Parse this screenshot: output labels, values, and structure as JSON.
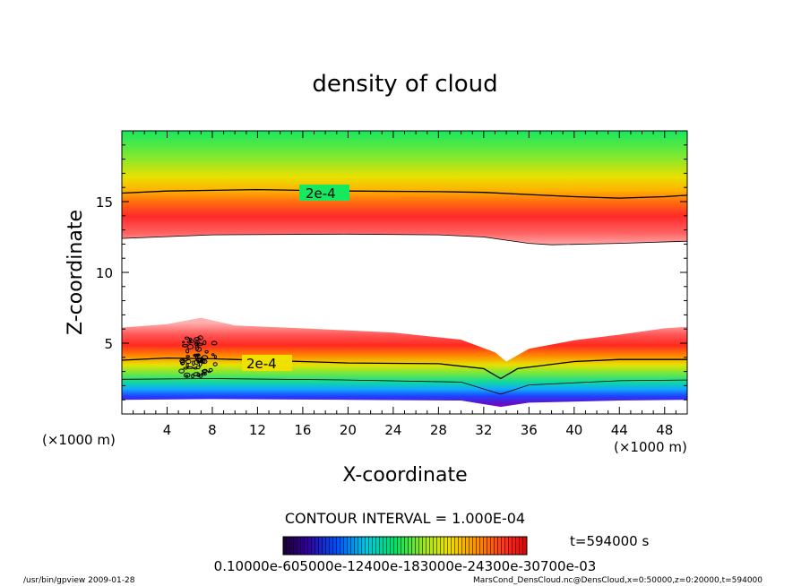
{
  "chart_data": {
    "type": "heatmap",
    "title": "density of cloud",
    "xlabel": "X-coordinate",
    "ylabel": "Z-coordinate",
    "x_unit_left": "(×1000 m)",
    "x_unit_right": "(×1000 m)",
    "xlim": [
      0,
      50
    ],
    "ylim": [
      0,
      20
    ],
    "x_ticks": [
      4,
      8,
      12,
      16,
      20,
      24,
      28,
      32,
      36,
      40,
      44,
      48
    ],
    "y_ticks": [
      5,
      10,
      15
    ],
    "contour_labels": [
      "2e-4",
      "2e-4"
    ],
    "contour_interval": "CONTOUR INTERVAL = 1.000E-04",
    "time_label": "t=594000 s",
    "colorbar_tick_text": "0.10000e-605000e-12400e-183000e-24300e-30700e-03",
    "upper_band": {
      "contour_2e4_z": [
        [
          0,
          15.6
        ],
        [
          4,
          15.75
        ],
        [
          12,
          15.85
        ],
        [
          20,
          15.75
        ],
        [
          28,
          15.7
        ],
        [
          32,
          15.65
        ],
        [
          36,
          15.5
        ],
        [
          40,
          15.35
        ],
        [
          44,
          15.25
        ],
        [
          48,
          15.35
        ],
        [
          50,
          15.45
        ]
      ],
      "lower_edge_z": [
        [
          0,
          12.4
        ],
        [
          8,
          12.65
        ],
        [
          20,
          12.7
        ],
        [
          28,
          12.65
        ],
        [
          32,
          12.5
        ],
        [
          36,
          12.05
        ],
        [
          38,
          11.95
        ],
        [
          44,
          12.05
        ],
        [
          50,
          12.2
        ]
      ]
    },
    "lower_band": {
      "upper_edge_z": [
        [
          0,
          6.1
        ],
        [
          4,
          6.35
        ],
        [
          7,
          6.8
        ],
        [
          10,
          6.25
        ],
        [
          16,
          6.05
        ],
        [
          24,
          5.75
        ],
        [
          30,
          5.25
        ],
        [
          33,
          4.35
        ],
        [
          34,
          3.7
        ],
        [
          36,
          4.6
        ],
        [
          40,
          5.2
        ],
        [
          44,
          5.6
        ],
        [
          48,
          6.05
        ],
        [
          50,
          6.15
        ]
      ],
      "contour_2e4_z": [
        [
          0,
          3.8
        ],
        [
          4,
          3.95
        ],
        [
          8,
          3.9
        ],
        [
          12,
          3.8
        ],
        [
          16,
          3.7
        ],
        [
          20,
          3.6
        ],
        [
          28,
          3.55
        ],
        [
          32,
          3.2
        ],
        [
          33.5,
          2.5
        ],
        [
          35,
          3.2
        ],
        [
          40,
          3.7
        ],
        [
          44,
          3.85
        ],
        [
          50,
          3.85
        ]
      ],
      "inner_contour_z": [
        [
          0,
          2.45
        ],
        [
          8,
          2.5
        ],
        [
          20,
          2.4
        ],
        [
          30,
          2.25
        ],
        [
          33.5,
          1.4
        ],
        [
          36,
          2.05
        ],
        [
          44,
          2.35
        ],
        [
          50,
          2.4
        ]
      ],
      "bottom_edge_z": [
        [
          0,
          1.0
        ],
        [
          8,
          1.05
        ],
        [
          20,
          1.0
        ],
        [
          30,
          0.95
        ],
        [
          33.5,
          0.5
        ],
        [
          36,
          0.8
        ],
        [
          44,
          0.95
        ],
        [
          50,
          1.0
        ]
      ]
    }
  },
  "footer": {
    "left": "/usr/bin/gpview  2009-01-28",
    "right": "MarsCond_DensCloud.nc@DensCloud,x=0:50000,z=0:20000,t=594000"
  }
}
